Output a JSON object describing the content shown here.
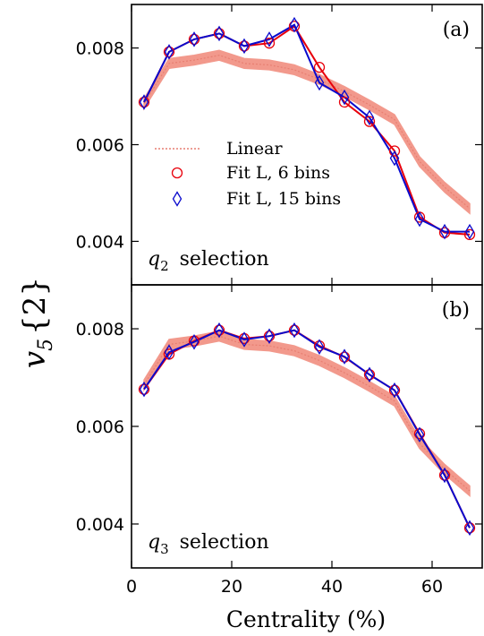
{
  "figure": {
    "ylabel_main": "v",
    "ylabel_sub": "5",
    "ylabel_rest": "{2}",
    "xlabel": "Centrality (%)"
  },
  "colors": {
    "band": "#f2998c",
    "band_center": "#e77f72",
    "fit6": "#e8000b",
    "fit15": "#0a0acd"
  },
  "chart_data": [
    {
      "type": "line",
      "panel_tag": "(a)",
      "selection_label": {
        "symbol": "q",
        "sub": "2",
        "text": "selection"
      },
      "x": [
        2.5,
        7.5,
        12.5,
        17.5,
        22.5,
        27.5,
        32.5,
        37.5,
        42.5,
        47.5,
        52.5,
        57.5,
        62.5,
        67.5
      ],
      "xlim": [
        0,
        70
      ],
      "ylim": [
        0.0031,
        0.0089
      ],
      "xticks": [
        0,
        20,
        40,
        60
      ],
      "yticks": [
        0.004,
        0.006,
        0.008
      ],
      "ytick_labels": [
        "0.004",
        "0.006",
        "0.008"
      ],
      "legend": [
        "Linear",
        "Fit L, 6 bins",
        "Fit L, 15 bins"
      ],
      "band": {
        "name": "Linear",
        "center": [
          0.00685,
          0.00768,
          0.00775,
          0.00785,
          0.00768,
          0.00765,
          0.00755,
          0.00735,
          0.0071,
          0.00682,
          0.00652,
          0.00565,
          0.00512,
          0.00468
        ],
        "half_width": [
          0.0001,
          0.0001,
          0.0001,
          0.0001,
          0.0001,
          0.0001,
          0.0001,
          0.0001,
          0.0001,
          0.0001,
          0.0001,
          0.0001,
          0.0001,
          0.0001
        ]
      },
      "series": [
        {
          "name": "Fit L, 6 bins",
          "marker": "circle",
          "values": [
            0.00688,
            0.00792,
            0.00818,
            0.0083,
            0.00804,
            0.0081,
            0.00845,
            0.0076,
            0.00688,
            0.00648,
            0.00587,
            0.0045,
            0.00418,
            0.00414
          ]
        },
        {
          "name": "Fit L, 15 bins",
          "marker": "diamond",
          "values": [
            0.00688,
            0.00792,
            0.00818,
            0.0083,
            0.00804,
            0.00818,
            0.00848,
            0.00728,
            0.00698,
            0.00656,
            0.00572,
            0.00446,
            0.0042,
            0.0042
          ]
        }
      ]
    },
    {
      "type": "line",
      "panel_tag": "(b)",
      "selection_label": {
        "symbol": "q",
        "sub": "3",
        "text": "selection"
      },
      "x": [
        2.5,
        7.5,
        12.5,
        17.5,
        22.5,
        27.5,
        32.5,
        37.5,
        42.5,
        47.5,
        52.5,
        57.5,
        62.5,
        67.5
      ],
      "xlim": [
        0,
        70
      ],
      "ylim": [
        0.0031,
        0.0089
      ],
      "xticks": [
        0,
        20,
        40,
        60
      ],
      "xtick_labels": [
        "0",
        "20",
        "40",
        "60"
      ],
      "yticks": [
        0.004,
        0.006,
        0.008
      ],
      "ytick_labels": [
        "0.004",
        "0.006",
        "0.008"
      ],
      "band": {
        "name": "Linear",
        "center": [
          0.00685,
          0.00768,
          0.00775,
          0.00785,
          0.00768,
          0.00765,
          0.00755,
          0.00735,
          0.0071,
          0.00682,
          0.00652,
          0.00565,
          0.00512,
          0.00468
        ],
        "half_width": [
          0.0001,
          0.0001,
          0.0001,
          0.0001,
          0.0001,
          0.0001,
          0.0001,
          0.0001,
          0.0001,
          0.0001,
          0.0001,
          0.0001,
          0.0001,
          0.0001
        ]
      },
      "series": [
        {
          "name": "Fit L, 6 bins",
          "marker": "circle",
          "values": [
            0.00676,
            0.00748,
            0.00775,
            0.00797,
            0.0078,
            0.00785,
            0.00797,
            0.00765,
            0.00742,
            0.00706,
            0.00674,
            0.00585,
            0.005,
            0.00392
          ]
        },
        {
          "name": "Fit L, 15 bins",
          "marker": "diamond",
          "values": [
            0.00676,
            0.00752,
            0.00773,
            0.00797,
            0.00778,
            0.00785,
            0.00797,
            0.00763,
            0.00743,
            0.00706,
            0.00674,
            0.00583,
            0.005,
            0.00392
          ]
        }
      ]
    }
  ]
}
